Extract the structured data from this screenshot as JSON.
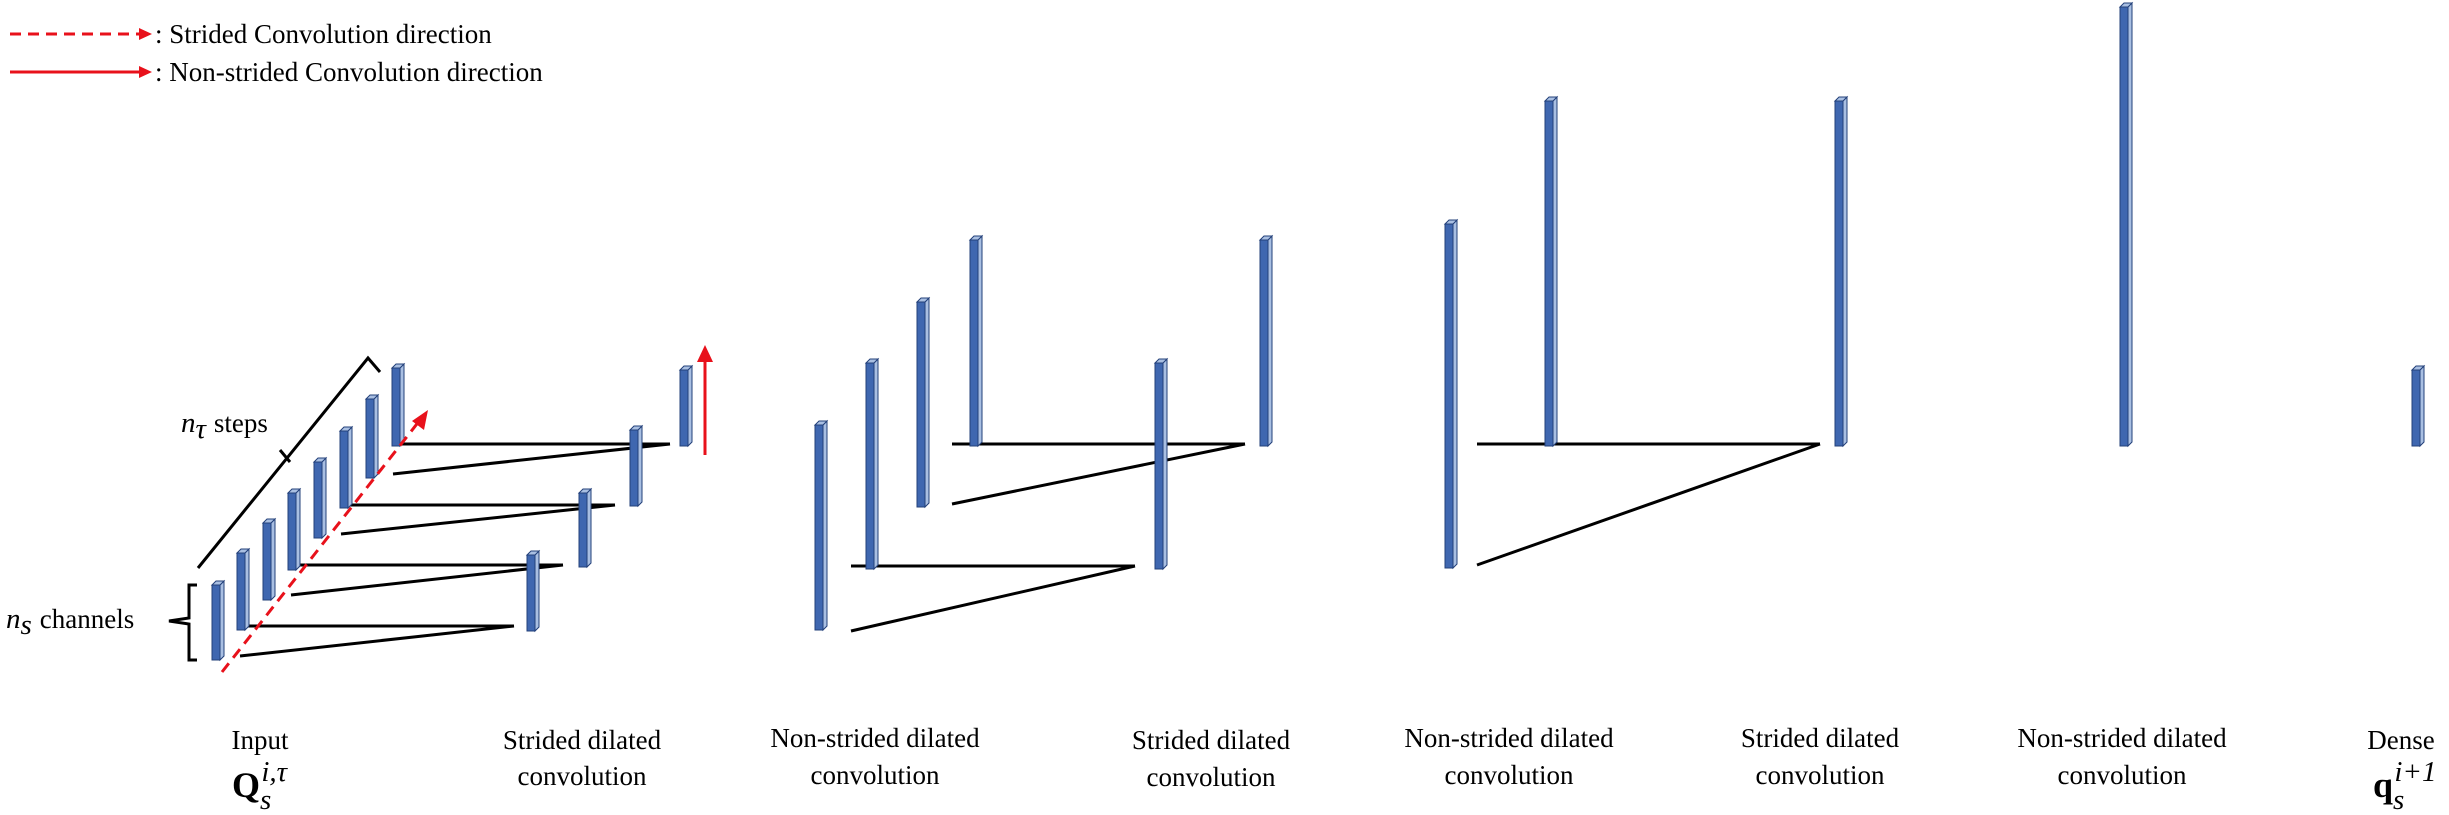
{
  "legend": {
    "strided": ": Strided Convolution direction",
    "non_strided": ": Non-strided Convolution direction"
  },
  "axis_labels": {
    "n_tau_symbol": "n",
    "n_tau_sub": "τ",
    "n_tau_text": "steps",
    "n_s_symbol": "n",
    "n_s_sub": "s",
    "n_s_text": "channels"
  },
  "captions": {
    "input": {
      "line1": "Input",
      "symbol": "Q",
      "sub": "s",
      "sup": "i,τ"
    },
    "stage1": {
      "line1": "Strided dilated",
      "line2": "convolution"
    },
    "stage2": {
      "line1": "Non-strided dilated",
      "line2": "convolution"
    },
    "stage3": {
      "line1": "Strided dilated",
      "line2": "convolution"
    },
    "stage4": {
      "line1": "Non-strided dilated",
      "line2": "convolution"
    },
    "stage5": {
      "line1": "Strided dilated",
      "line2": "convolution"
    },
    "stage6": {
      "line1": "Non-strided dilated",
      "line2": "convolution"
    },
    "dense": {
      "line1": "Dense",
      "symbol": "q",
      "sub": "s",
      "sup": "i+1"
    }
  },
  "colors": {
    "bar_front": "#3f67b0",
    "bar_side": "#a9bfe2",
    "bar_edge": "#23407a",
    "arrow": "#e8111b",
    "line": "#000000"
  }
}
